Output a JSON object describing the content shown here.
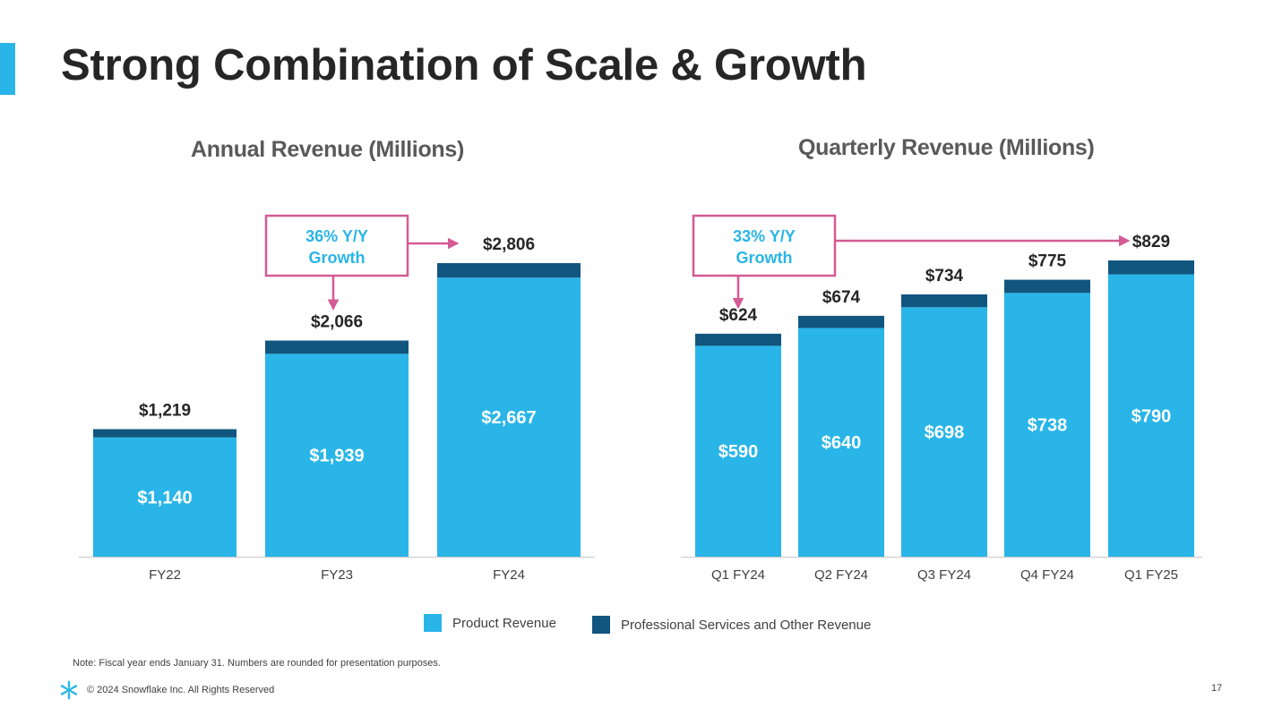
{
  "slide": {
    "title": "Strong Combination of Scale & Growth",
    "note": "Note: Fiscal year ends January 31. Numbers are rounded for presentation purposes.",
    "footer": "© 2024 Snowflake Inc. All Rights Reserved",
    "page_number": "17"
  },
  "colors": {
    "product": "#29b5e8",
    "services": "#11567f",
    "callout": "#d45a93",
    "accent": "#29b5e8"
  },
  "legend": {
    "product": "Product Revenue",
    "services": "Professional Services and Other Revenue"
  },
  "chart_data": [
    {
      "type": "bar",
      "stacked": true,
      "title": "Annual Revenue (Millions)",
      "categories": [
        "FY22",
        "FY23",
        "FY24"
      ],
      "series": [
        {
          "name": "Product Revenue",
          "values": [
            1140,
            1939,
            2667
          ],
          "labels": [
            "$1,140",
            "$1,939",
            "$2,667"
          ]
        },
        {
          "name": "Professional Services and Other Revenue",
          "values": [
            79,
            127,
            139
          ]
        }
      ],
      "totals": [
        1219,
        2066,
        2806
      ],
      "total_labels": [
        "$1,219",
        "$2,066",
        "$2,806"
      ],
      "ylim": [
        0,
        2806
      ],
      "grid": false,
      "legend": "bottom",
      "annotation": {
        "line1": "36% Y/Y",
        "line2": "Growth",
        "from": "FY23",
        "to": "FY24"
      }
    },
    {
      "type": "bar",
      "stacked": true,
      "title": "Quarterly Revenue (Millions)",
      "categories": [
        "Q1 FY24",
        "Q2 FY24",
        "Q3 FY24",
        "Q4 FY24",
        "Q1 FY25"
      ],
      "series": [
        {
          "name": "Product Revenue",
          "values": [
            590,
            640,
            698,
            738,
            790
          ],
          "labels": [
            "$590",
            "$640",
            "$698",
            "$738",
            "$790"
          ]
        },
        {
          "name": "Professional Services and Other Revenue",
          "values": [
            34,
            34,
            36,
            37,
            39
          ]
        }
      ],
      "totals": [
        624,
        674,
        734,
        775,
        829
      ],
      "total_labels": [
        "$624",
        "$674",
        "$734",
        "$775",
        "$829"
      ],
      "ylim": [
        0,
        829
      ],
      "grid": false,
      "legend": "bottom",
      "annotation": {
        "line1": "33% Y/Y",
        "line2": "Growth",
        "from": "Q1 FY24",
        "to": "Q1 FY25"
      }
    }
  ]
}
